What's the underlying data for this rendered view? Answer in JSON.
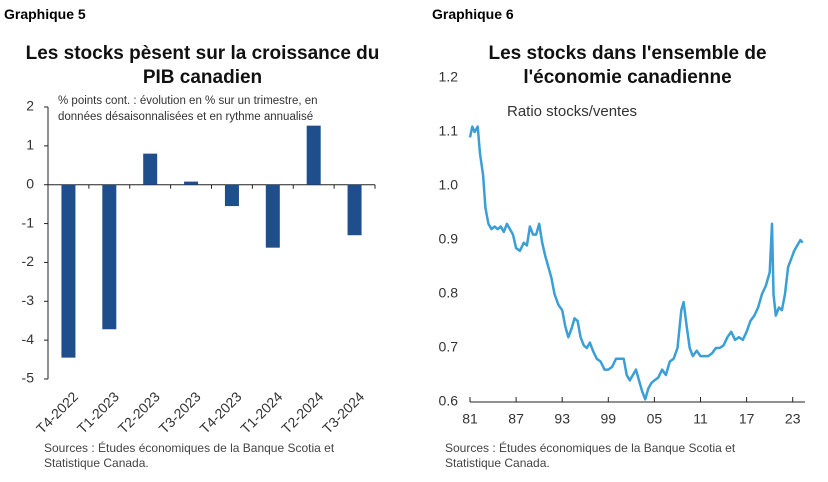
{
  "chart_data": [
    {
      "type": "bar",
      "label": "Graphique 5",
      "title": "Les stocks pèsent sur la croissance du PIB canadien",
      "subtitle": "% points cont. : évolution en % sur un trimestre, en données désaisonnalisées et en rythme annualisé",
      "source": "Sources : Études économiques de la Banque Scotia et Statistique Canada.",
      "categories": [
        "T4-2022",
        "T1-2023",
        "T2-2023",
        "T3-2023",
        "T4-2023",
        "T1-2024",
        "T2-2024",
        "T3-2024"
      ],
      "values": [
        -4.45,
        -3.72,
        0.8,
        0.08,
        -0.55,
        -1.62,
        1.52,
        -1.3
      ],
      "color": "#1f4e8c",
      "ylim": [
        -5,
        2
      ],
      "yticks": [
        -5,
        -4,
        -3,
        -2,
        -1,
        0,
        1,
        2
      ],
      "grid": false
    },
    {
      "type": "line",
      "label": "Graphique 6",
      "title": "Les stocks dans l'ensemble de l'économie canadienne",
      "annotation": "Ratio stocks/ventes",
      "source": "Sources : Études économiques de la Banque Scotia et Statistique Canada.",
      "x": [
        1981.0,
        1981.3,
        1981.6,
        1982.0,
        1982.3,
        1982.7,
        1983.0,
        1983.4,
        1983.8,
        1984.2,
        1984.6,
        1985.0,
        1985.4,
        1985.8,
        1986.2,
        1986.6,
        1987.0,
        1987.5,
        1988.0,
        1988.4,
        1988.8,
        1989.2,
        1989.6,
        1990.0,
        1990.4,
        1990.8,
        1991.2,
        1991.6,
        1992.0,
        1992.5,
        1993.0,
        1993.4,
        1993.8,
        1994.2,
        1994.6,
        1995.0,
        1995.4,
        1995.8,
        1996.2,
        1996.6,
        1997.0,
        1997.5,
        1998.0,
        1998.5,
        1999.0,
        1999.5,
        2000.0,
        2000.5,
        2001.0,
        2001.4,
        2001.8,
        2002.2,
        2002.6,
        2003.0,
        2003.4,
        2003.8,
        2004.2,
        2004.6,
        2005.0,
        2005.5,
        2006.0,
        2006.5,
        2007.0,
        2007.5,
        2008.0,
        2008.5,
        2008.8,
        2009.2,
        2009.6,
        2010.0,
        2010.5,
        2011.0,
        2011.5,
        2012.0,
        2012.5,
        2013.0,
        2013.5,
        2014.0,
        2014.5,
        2015.0,
        2015.5,
        2016.0,
        2016.5,
        2017.0,
        2017.5,
        2018.0,
        2018.5,
        2019.0,
        2019.5,
        2020.0,
        2020.3,
        2020.5,
        2020.8,
        2021.2,
        2021.6,
        2022.0,
        2022.4,
        2022.8,
        2023.2,
        2023.6,
        2024.0,
        2024.3
      ],
      "values": [
        1.09,
        1.11,
        1.1,
        1.11,
        1.06,
        1.02,
        0.96,
        0.93,
        0.92,
        0.925,
        0.92,
        0.925,
        0.915,
        0.93,
        0.92,
        0.91,
        0.885,
        0.88,
        0.895,
        0.89,
        0.925,
        0.91,
        0.91,
        0.93,
        0.895,
        0.87,
        0.85,
        0.83,
        0.8,
        0.78,
        0.77,
        0.74,
        0.72,
        0.735,
        0.755,
        0.75,
        0.72,
        0.705,
        0.7,
        0.71,
        0.695,
        0.68,
        0.675,
        0.66,
        0.66,
        0.665,
        0.68,
        0.68,
        0.68,
        0.65,
        0.64,
        0.65,
        0.66,
        0.64,
        0.62,
        0.605,
        0.625,
        0.635,
        0.64,
        0.645,
        0.66,
        0.65,
        0.675,
        0.68,
        0.7,
        0.77,
        0.785,
        0.74,
        0.7,
        0.685,
        0.695,
        0.685,
        0.685,
        0.685,
        0.69,
        0.7,
        0.7,
        0.705,
        0.72,
        0.73,
        0.715,
        0.72,
        0.715,
        0.73,
        0.75,
        0.76,
        0.775,
        0.8,
        0.815,
        0.84,
        0.93,
        0.8,
        0.76,
        0.775,
        0.77,
        0.8,
        0.85,
        0.865,
        0.88,
        0.89,
        0.9,
        0.895
      ],
      "color": "#3a9fd6",
      "xlim": [
        1981,
        2024.6
      ],
      "xticks": [
        {
          "value": 1981,
          "label": "81"
        },
        {
          "value": 1987,
          "label": "87"
        },
        {
          "value": 1993,
          "label": "93"
        },
        {
          "value": 1999,
          "label": "99"
        },
        {
          "value": 2005,
          "label": "05"
        },
        {
          "value": 2011,
          "label": "11"
        },
        {
          "value": 2017,
          "label": "17"
        },
        {
          "value": 2023,
          "label": "23"
        }
      ],
      "ylim": [
        0.6,
        1.2
      ],
      "yticks": [
        0.6,
        0.7,
        0.8,
        0.9,
        {
          "value": 1,
          "label": "1.0"
        },
        1.1,
        1.2
      ],
      "grid": false
    }
  ]
}
